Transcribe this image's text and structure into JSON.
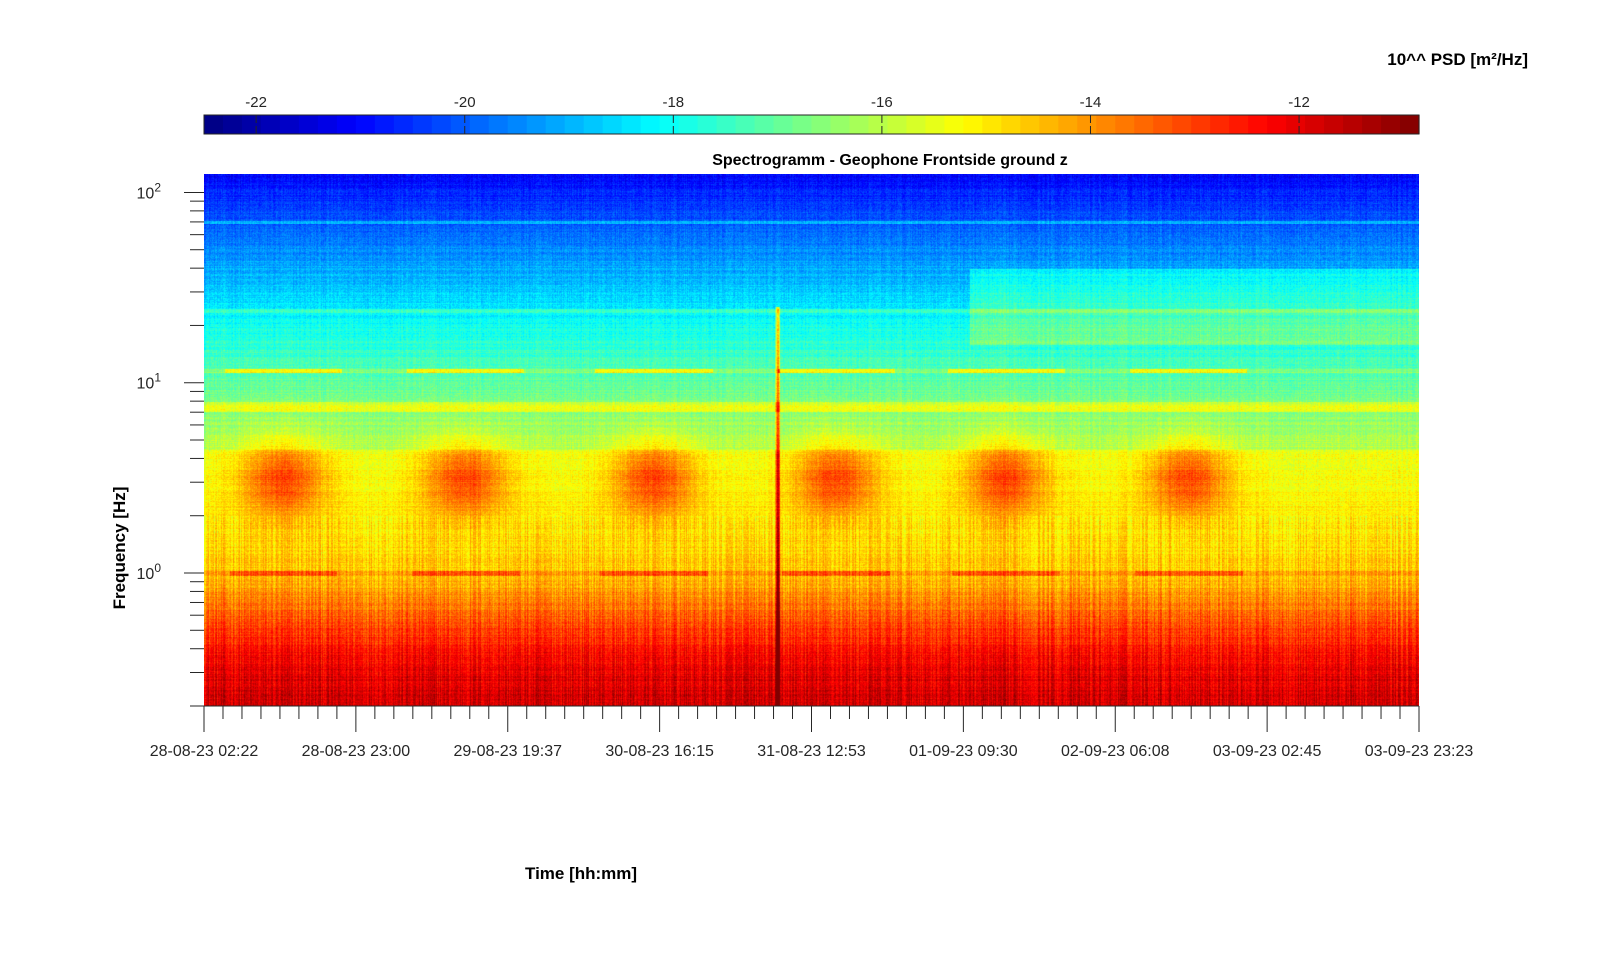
{
  "chart_data": {
    "type": "heatmap",
    "title": "Spectrogramm - Geophone Frontside ground z",
    "xlabel": "Time [hh:mm]",
    "ylabel": "Frequency [Hz]",
    "x_ticks": [
      "28-08-23 02:22",
      "28-08-23 23:00",
      "29-08-23 19:37",
      "30-08-23 16:15",
      "31-08-23 12:53",
      "01-09-23 09:30",
      "02-09-23 06:08",
      "03-09-23 02:45",
      "03-09-23 23:23"
    ],
    "y_scale": "log",
    "y_ticks": [
      {
        "base": "10",
        "exp": "0",
        "value": 1
      },
      {
        "base": "10",
        "exp": "1",
        "value": 10
      },
      {
        "base": "10",
        "exp": "2",
        "value": 100
      }
    ],
    "ylim": [
      0.2,
      125
    ],
    "colorbar": {
      "label": "10^^ PSD [m²/Hz]",
      "ticks": [
        "-22",
        "-20",
        "-18",
        "-16",
        "-14",
        "-12"
      ],
      "tick_values": [
        -22,
        -20,
        -18,
        -16,
        -14,
        -12
      ],
      "range": [
        -22.5,
        -10.85
      ],
      "colormap": "jet",
      "location": "top"
    },
    "features": {
      "daily_bursts_hz": [
        2,
        6
      ],
      "tonal_lines_hz": [
        1.0,
        7.5,
        11.5,
        24,
        70
      ],
      "spike_event": "31-08-23 ~05:00",
      "noise_floor_low_freq_log10_psd": -11.8,
      "high_freq_log10_psd": -20.5
    }
  }
}
